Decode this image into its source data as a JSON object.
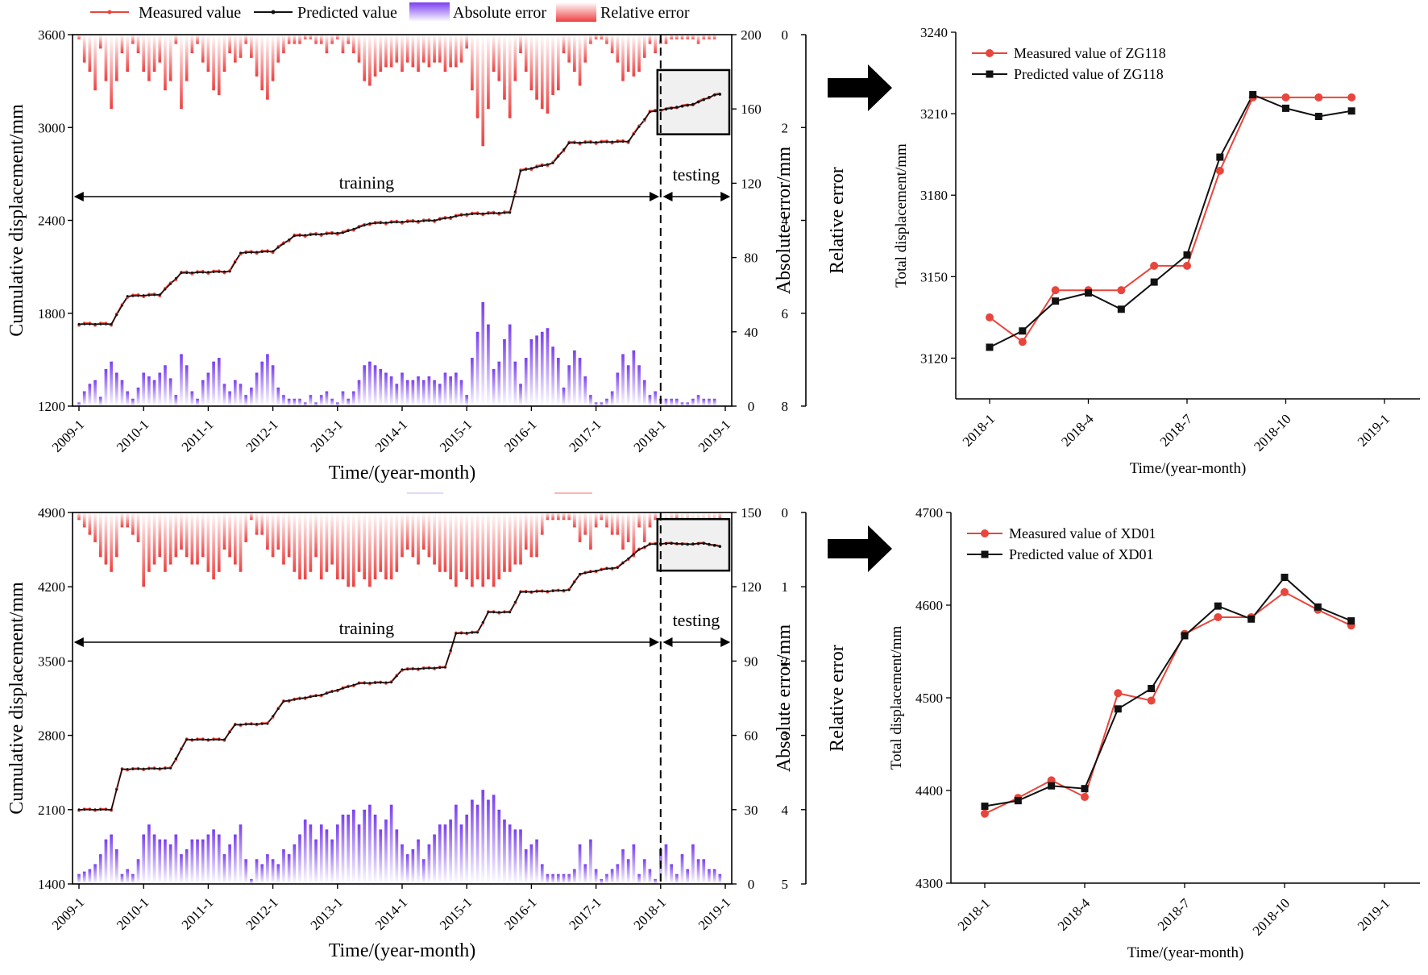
{
  "figure": {
    "top_legend": {
      "measured": "Measured value",
      "predicted": "Predicted value",
      "abs_error": "Absolute error",
      "rel_error": "Relative error"
    }
  },
  "colors": {
    "measured": "#e8453c",
    "predicted": "#111111",
    "abs_error": "#8a4cf0",
    "rel_error": "#ee4c4c",
    "zoom_box": "#f0f0f0"
  },
  "chart_data": [
    {
      "id": "zg118_series",
      "type": "bar+line",
      "x_ticks": [
        "2009-1",
        "2010-1",
        "2011-1",
        "2012-1",
        "2013-1",
        "2014-1",
        "2015-1",
        "2016-1",
        "2017-1",
        "2018-1",
        "2019-1"
      ],
      "xlabel": "Time/(year-month)",
      "ylabel": "Cumulative displacement/mm",
      "ylabel_right1": "Absolute error/mm",
      "ylabel_right2": "Relative error",
      "ylim": [
        1200,
        3600
      ],
      "y_ticks": [
        1200,
        1800,
        2400,
        3000,
        3600
      ],
      "y_ticks_abs": [
        0,
        40,
        80,
        120,
        160,
        200
      ],
      "ylim_abs": [
        0,
        200
      ],
      "y_ticks_rel": [
        0,
        2,
        4,
        6,
        8
      ],
      "ylim_rel": [
        0,
        8
      ],
      "phase_training": "training",
      "phase_testing": "testing",
      "split_month": 108,
      "anchors": [
        [
          0,
          1730
        ],
        [
          6,
          1730
        ],
        [
          9,
          1910
        ],
        [
          15,
          1920
        ],
        [
          19,
          2060
        ],
        [
          28,
          2070
        ],
        [
          30,
          2190
        ],
        [
          36,
          2200
        ],
        [
          40,
          2300
        ],
        [
          49,
          2320
        ],
        [
          54,
          2380
        ],
        [
          66,
          2400
        ],
        [
          72,
          2440
        ],
        [
          80,
          2450
        ],
        [
          82,
          2720
        ],
        [
          88,
          2770
        ],
        [
          91,
          2900
        ],
        [
          102,
          2910
        ],
        [
          106,
          3100
        ],
        [
          114,
          3150
        ],
        [
          118,
          3210
        ],
        [
          119,
          3215
        ]
      ],
      "abs_error": [
        2,
        8,
        12,
        14,
        5,
        20,
        24,
        18,
        14,
        8,
        4,
        10,
        18,
        16,
        14,
        18,
        22,
        15,
        6,
        28,
        22,
        8,
        4,
        14,
        18,
        24,
        26,
        12,
        8,
        14,
        12,
        6,
        10,
        18,
        24,
        28,
        22,
        10,
        6,
        4,
        4,
        4,
        2,
        6,
        2,
        6,
        8,
        4,
        2,
        8,
        4,
        8,
        14,
        22,
        24,
        22,
        20,
        18,
        16,
        12,
        18,
        14,
        14,
        16,
        14,
        16,
        14,
        12,
        18,
        16,
        18,
        14,
        6,
        26,
        40,
        56,
        44,
        20,
        24,
        36,
        44,
        24,
        12,
        26,
        36,
        38,
        40,
        42,
        32,
        26,
        10,
        22,
        30,
        26,
        16,
        6,
        2,
        2,
        4,
        8,
        18,
        28,
        22,
        30,
        22,
        14,
        6,
        8,
        4,
        4,
        4,
        4,
        2,
        2,
        4,
        6,
        4,
        4,
        4
      ],
      "rel_error": [
        0.1,
        0.6,
        0.8,
        1.2,
        0.3,
        1.0,
        1.6,
        1.0,
        0.4,
        0.8,
        0.2,
        0.4,
        0.8,
        1.0,
        0.8,
        0.6,
        1.2,
        1.0,
        0.2,
        1.6,
        1.0,
        0.4,
        0.2,
        0.6,
        0.8,
        1.2,
        1.3,
        0.8,
        0.4,
        0.6,
        0.5,
        0.2,
        0.5,
        0.9,
        1.2,
        1.4,
        1.0,
        0.6,
        0.4,
        0.2,
        0.2,
        0.2,
        0.1,
        0.1,
        0.2,
        0.2,
        0.4,
        0.2,
        0.1,
        0.4,
        0.2,
        0.4,
        0.6,
        1.0,
        1.1,
        0.9,
        0.8,
        0.7,
        0.7,
        0.6,
        0.8,
        0.6,
        0.7,
        0.8,
        0.6,
        0.7,
        0.6,
        0.6,
        0.8,
        0.7,
        0.7,
        0.6,
        0.3,
        1.2,
        1.8,
        2.4,
        1.6,
        0.8,
        1.0,
        1.4,
        1.8,
        1.0,
        0.4,
        0.8,
        1.2,
        1.4,
        1.6,
        1.7,
        1.3,
        1.2,
        0.4,
        0.6,
        0.8,
        1.1,
        0.6,
        0.2,
        0.1,
        0.1,
        0.2,
        0.4,
        0.6,
        1.0,
        0.8,
        0.9,
        0.8,
        0.5,
        0.2,
        0.4,
        0.2,
        0.2,
        0.1,
        0.1,
        0.1,
        0.1,
        0.1,
        0.2,
        0.1,
        0.1,
        0.1
      ]
    },
    {
      "id": "zg118_zoom",
      "type": "line",
      "title_measured": "Measured value of ZG118",
      "title_predicted": "Predicted value of ZG118",
      "x_ticks": [
        "2018-1",
        "2018-4",
        "2018-7",
        "2018-10",
        "2019-1"
      ],
      "xlabel": "Time/(year-month)",
      "ylabel": "Total displacement/mm",
      "ylim": [
        3105,
        3240
      ],
      "y_ticks": [
        3120,
        3150,
        3180,
        3210,
        3240
      ],
      "series": [
        {
          "name": "Measured value of ZG118",
          "values": [
            3135,
            3126,
            3145,
            3145,
            3145,
            3154,
            3154,
            3189,
            3216,
            3216,
            3216,
            3216
          ]
        },
        {
          "name": "Predicted value of ZG118",
          "values": [
            3124,
            3130,
            3141,
            3144,
            3138,
            3148,
            3158,
            3194,
            3217,
            3212,
            3209,
            3211
          ]
        }
      ]
    },
    {
      "id": "xd01_series",
      "type": "bar+line",
      "x_ticks": [
        "2009-1",
        "2010-1",
        "2011-1",
        "2012-1",
        "2013-1",
        "2014-1",
        "2015-1",
        "2016-1",
        "2017-1",
        "2018-1",
        "2019-1"
      ],
      "xlabel": "Time/(year-month)",
      "ylabel": "Cumulative displacement/mm",
      "ylabel_right1": "Absolute error/mm",
      "ylabel_right2": "Relative error",
      "ylim": [
        1400,
        4900
      ],
      "y_ticks": [
        1400,
        2100,
        2800,
        3500,
        4200,
        4900
      ],
      "y_ticks_abs": [
        0,
        30,
        60,
        90,
        120,
        150
      ],
      "ylim_abs": [
        0,
        150
      ],
      "y_ticks_rel": [
        0,
        1,
        2,
        3,
        4,
        5
      ],
      "ylim_rel": [
        0,
        5
      ],
      "phase_training": "training",
      "phase_testing": "testing",
      "split_month": 108,
      "anchors": [
        [
          0,
          2100
        ],
        [
          6,
          2100
        ],
        [
          8,
          2480
        ],
        [
          17,
          2490
        ],
        [
          20,
          2760
        ],
        [
          27,
          2760
        ],
        [
          29,
          2900
        ],
        [
          35,
          2910
        ],
        [
          38,
          3120
        ],
        [
          45,
          3180
        ],
        [
          52,
          3290
        ],
        [
          58,
          3300
        ],
        [
          60,
          3420
        ],
        [
          68,
          3440
        ],
        [
          70,
          3760
        ],
        [
          74,
          3770
        ],
        [
          76,
          3960
        ],
        [
          80,
          3960
        ],
        [
          82,
          4150
        ],
        [
          88,
          4160
        ],
        [
          91,
          4170
        ],
        [
          93,
          4320
        ],
        [
          98,
          4370
        ],
        [
          100,
          4380
        ],
        [
          104,
          4550
        ],
        [
          106,
          4600
        ],
        [
          110,
          4610
        ],
        [
          113,
          4600
        ],
        [
          116,
          4610
        ],
        [
          119,
          4580
        ]
      ],
      "abs_error": [
        4,
        5,
        6,
        8,
        12,
        18,
        20,
        14,
        4,
        6,
        4,
        10,
        20,
        24,
        20,
        18,
        18,
        16,
        20,
        12,
        14,
        18,
        18,
        18,
        20,
        22,
        20,
        12,
        16,
        20,
        24,
        10,
        2,
        10,
        8,
        12,
        10,
        8,
        14,
        12,
        16,
        20,
        26,
        24,
        18,
        24,
        22,
        18,
        24,
        28,
        28,
        30,
        24,
        30,
        32,
        28,
        22,
        26,
        32,
        22,
        16,
        12,
        14,
        18,
        10,
        16,
        20,
        24,
        24,
        26,
        32,
        24,
        28,
        34,
        32,
        38,
        34,
        36,
        30,
        26,
        24,
        22,
        22,
        14,
        16,
        18,
        8,
        4,
        4,
        4,
        4,
        4,
        6,
        16,
        8,
        18,
        6,
        2,
        4,
        6,
        8,
        14,
        10,
        16,
        4,
        10,
        6,
        2,
        14,
        16,
        8,
        4,
        12,
        6,
        16,
        10,
        10,
        6,
        6,
        4
      ],
      "rel_error": [
        0.1,
        0.2,
        0.3,
        0.4,
        0.6,
        0.7,
        0.8,
        0.6,
        0.2,
        0.2,
        0.3,
        0.4,
        1.0,
        0.8,
        0.7,
        0.6,
        0.8,
        0.7,
        0.6,
        0.5,
        0.6,
        0.7,
        0.7,
        0.6,
        0.8,
        0.9,
        0.8,
        0.5,
        0.6,
        0.7,
        0.8,
        0.4,
        0.1,
        0.3,
        0.3,
        0.5,
        0.6,
        0.5,
        0.7,
        0.6,
        0.8,
        0.9,
        0.9,
        0.8,
        0.6,
        0.9,
        0.8,
        0.7,
        0.9,
        0.9,
        1.0,
        1.0,
        0.8,
        0.9,
        1.0,
        0.9,
        0.8,
        0.9,
        0.9,
        0.8,
        0.6,
        0.5,
        0.6,
        0.7,
        0.5,
        0.6,
        0.7,
        0.8,
        0.8,
        0.9,
        1.0,
        0.8,
        0.9,
        1.0,
        0.9,
        1.0,
        0.9,
        1.0,
        0.9,
        0.8,
        0.8,
        0.7,
        0.7,
        0.5,
        0.6,
        0.6,
        0.3,
        0.1,
        0.1,
        0.1,
        0.1,
        0.1,
        0.2,
        0.4,
        0.3,
        0.5,
        0.2,
        0.1,
        0.2,
        0.3,
        0.3,
        0.5,
        0.4,
        0.6,
        0.2,
        0.4,
        0.2,
        0.1,
        0.3,
        0.4,
        0.2,
        0.1,
        0.3,
        0.2,
        0.4,
        0.3,
        0.3,
        0.2,
        0.2,
        0.1
      ]
    },
    {
      "id": "xd01_zoom",
      "type": "line",
      "title_measured": "Measured value of XD01",
      "title_predicted": "Predicted value of XD01",
      "x_ticks": [
        "2018-1",
        "2018-4",
        "2018-7",
        "2018-10",
        "2019-1"
      ],
      "xlabel": "Time/(year-month)",
      "ylabel": "Total displacement/mm",
      "ylim": [
        4300,
        4700
      ],
      "y_ticks": [
        4300,
        4400,
        4500,
        4600,
        4700
      ],
      "series": [
        {
          "name": "Measured value of XD01",
          "values": [
            4375,
            4392,
            4411,
            4393,
            4505,
            4497,
            4569,
            4587,
            4587,
            4614,
            4595,
            4578
          ]
        },
        {
          "name": "Predicted value of XD01",
          "values": [
            4383,
            4389,
            4405,
            4402,
            4488,
            4510,
            4567,
            4599,
            4585,
            4630,
            4598,
            4583
          ]
        }
      ]
    }
  ]
}
